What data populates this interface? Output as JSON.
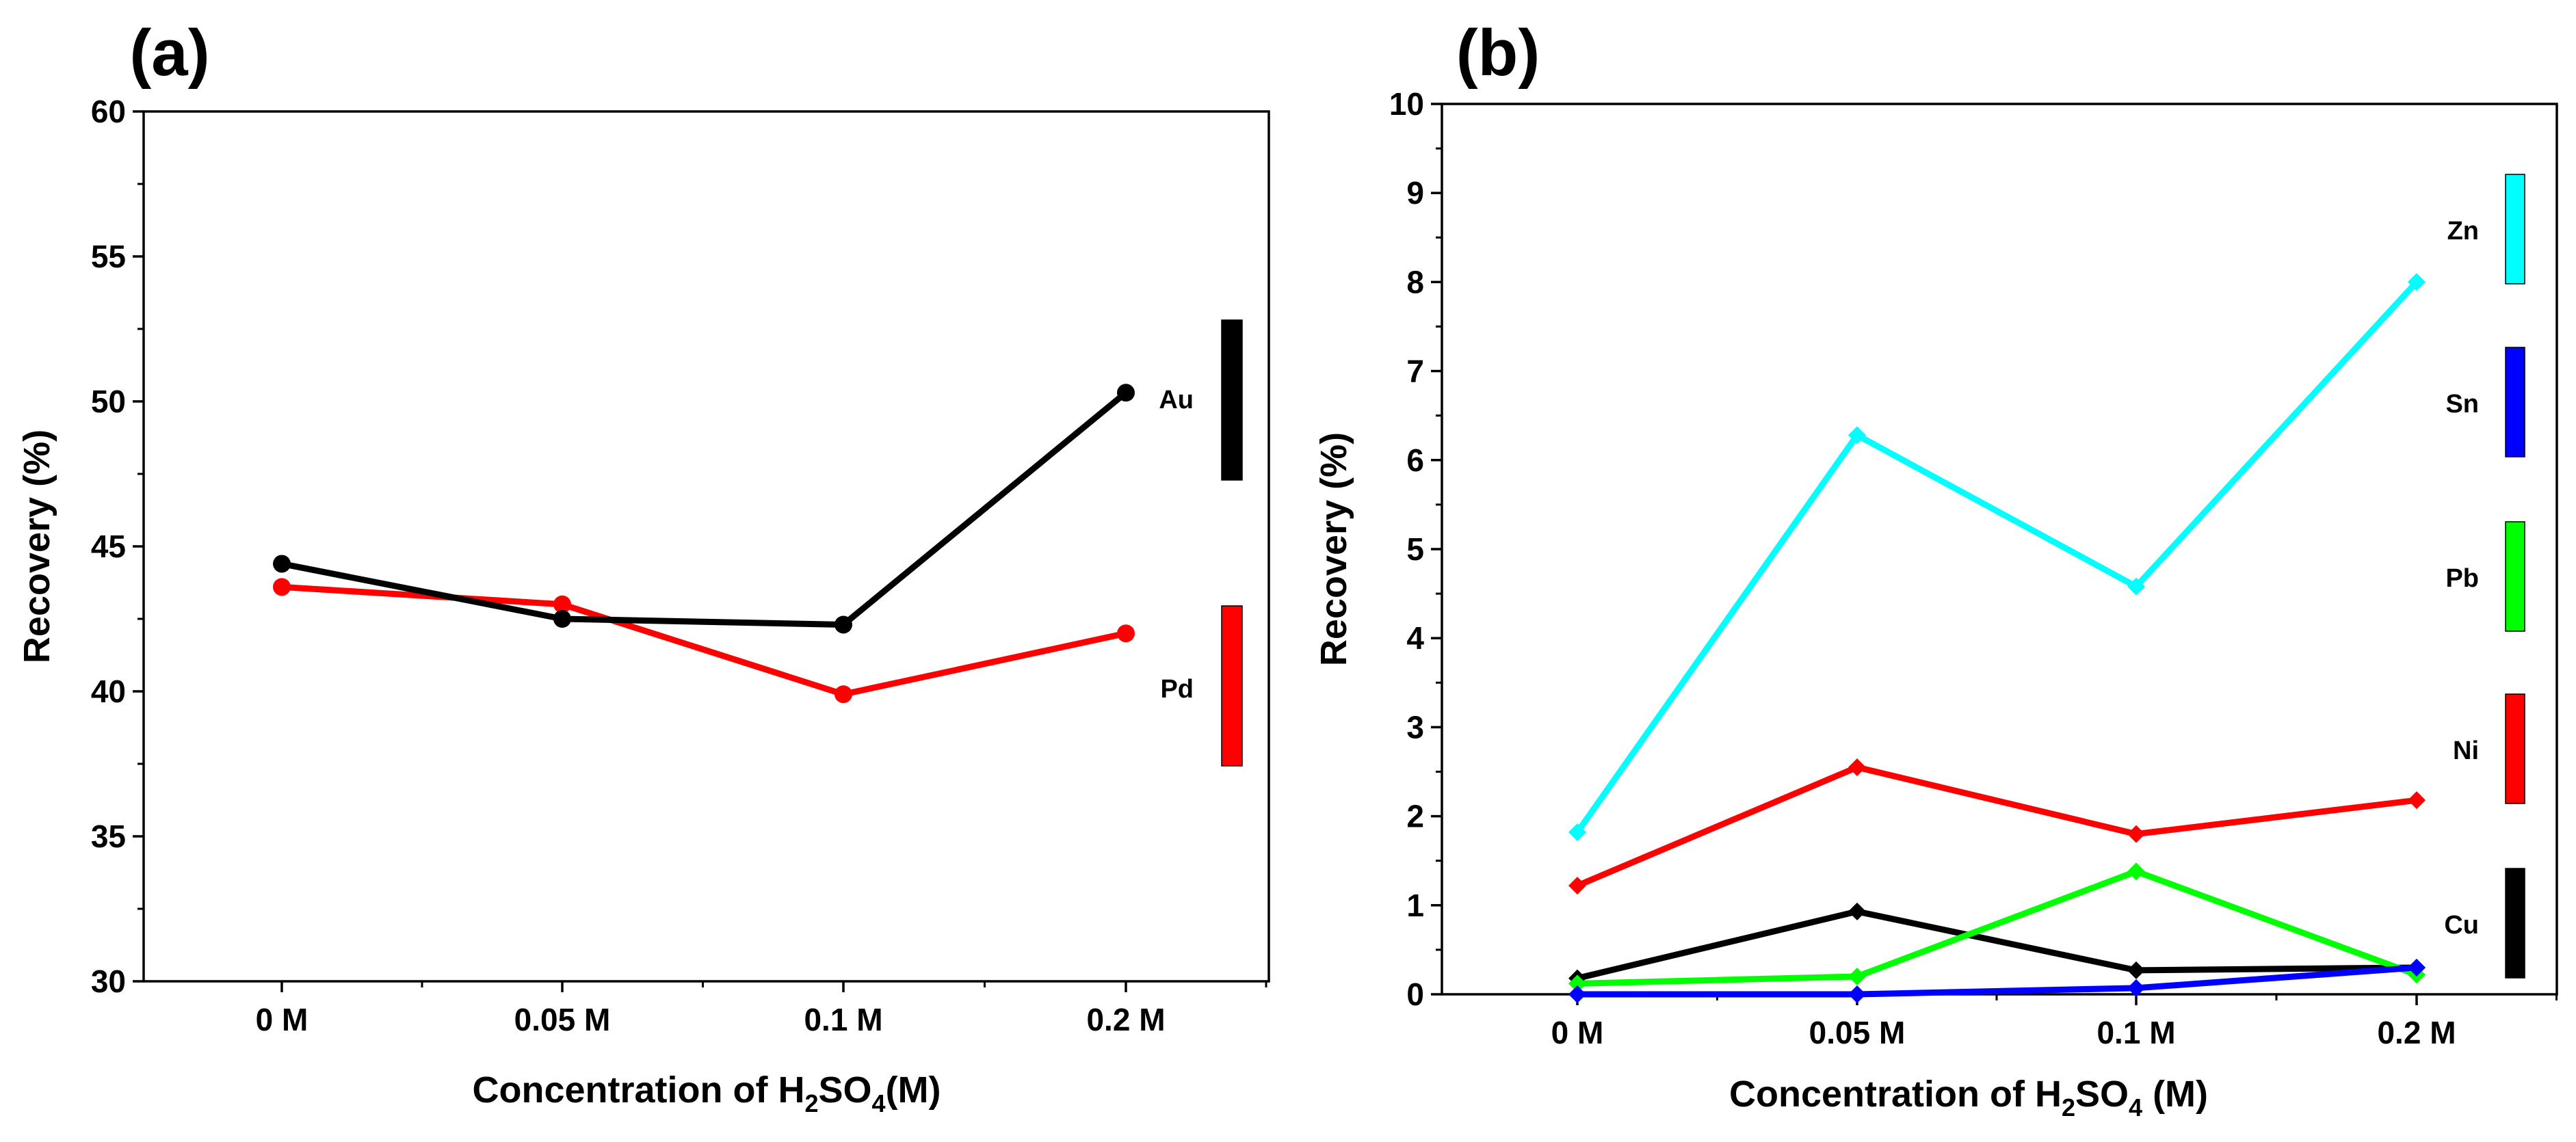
{
  "chart_data": [
    {
      "panel_label": "(a)",
      "type": "line",
      "categories": [
        "0 M",
        "0.05 M",
        "0.1 M",
        "0.2 M"
      ],
      "xlabel": {
        "pre": "Concentration of H",
        "sub1": "2",
        "mid": "SO",
        "sub2": "4",
        "post": "(M)"
      },
      "ylabel": "Recovery  (%)",
      "ylim": [
        30,
        60
      ],
      "yticks": [
        30,
        35,
        40,
        45,
        50,
        55,
        60
      ],
      "marker": "circle",
      "legend_position": "right",
      "series": [
        {
          "name": "Au",
          "color": "#000000",
          "values": [
            44.4,
            42.5,
            42.3,
            50.3
          ]
        },
        {
          "name": "Pd",
          "color": "#ff0000",
          "values": [
            43.6,
            43.0,
            39.9,
            42.0
          ]
        }
      ]
    },
    {
      "panel_label": "(b)",
      "type": "line",
      "categories": [
        "0 M",
        "0.05 M",
        "0.1 M",
        "0.2 M"
      ],
      "xlabel": {
        "pre": "Concentration of H",
        "sub1": "2",
        "mid": "SO",
        "sub2": "4",
        "post": " (M)"
      },
      "ylabel": "Recovery (%)",
      "ylim": [
        0,
        10
      ],
      "yticks": [
        0,
        1,
        2,
        3,
        4,
        5,
        6,
        7,
        8,
        9,
        10
      ],
      "marker": "diamond",
      "legend_position": "right",
      "series": [
        {
          "name": "Zn",
          "color": "#00ffff",
          "values": [
            1.82,
            6.28,
            4.58,
            8.0
          ]
        },
        {
          "name": "Sn",
          "color": "#0000ff",
          "values": [
            0.0,
            0.0,
            0.07,
            0.3
          ]
        },
        {
          "name": "Pb",
          "color": "#00ff00",
          "values": [
            0.12,
            0.2,
            1.38,
            0.22
          ]
        },
        {
          "name": "Ni",
          "color": "#ff0000",
          "values": [
            1.22,
            2.55,
            1.8,
            2.18
          ]
        },
        {
          "name": "Cu",
          "color": "#000000",
          "values": [
            0.18,
            0.93,
            0.27,
            0.3
          ]
        }
      ]
    }
  ]
}
